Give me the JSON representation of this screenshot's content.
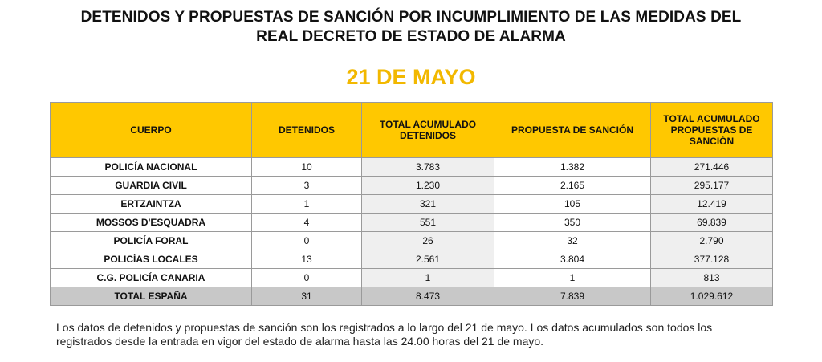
{
  "header": {
    "title_line1": "DETENIDOS Y PROPUESTAS DE SANCIÓN POR INCUMPLIMIENTO DE LAS MEDIDAS DEL",
    "title_line2": "REAL DECRETO DE ESTADO DE ALARMA",
    "date": "21 DE MAYO",
    "date_color": "#f2b800"
  },
  "table": {
    "header_color": "#ffc800",
    "columns": [
      "CUERPO",
      "DETENIDOS",
      "TOTAL ACUMULADO DETENIDOS",
      "PROPUESTA DE SANCIÓN",
      "TOTAL ACUMULADO PROPUESTAS DE SANCIÓN"
    ],
    "rows": [
      [
        "POLICÍA NACIONAL",
        "10",
        "3.783",
        "1.382",
        "271.446"
      ],
      [
        "GUARDIA CIVIL",
        "3",
        "1.230",
        "2.165",
        "295.177"
      ],
      [
        "ERTZAINTZA",
        "1",
        "321",
        "105",
        "12.419"
      ],
      [
        "MOSSOS D'ESQUADRA",
        "4",
        "551",
        "350",
        "69.839"
      ],
      [
        "POLICÍA FORAL",
        "0",
        "26",
        "32",
        "2.790"
      ],
      [
        "POLICÍAS LOCALES",
        "13",
        "2.561",
        "3.804",
        "377.128"
      ],
      [
        "C.G. POLICÍA CANARIA",
        "0",
        "1",
        "1",
        "813"
      ]
    ],
    "total": [
      "TOTAL ESPAÑA",
      "31",
      "8.473",
      "7.839",
      "1.029.612"
    ]
  },
  "note": "Los datos de detenidos y propuestas de sanción son los registrados a lo largo del 21 de mayo. Los datos acumulados son todos los registrados desde la entrada en vigor del estado de alarma hasta las 24.00 horas del 21 de mayo."
}
